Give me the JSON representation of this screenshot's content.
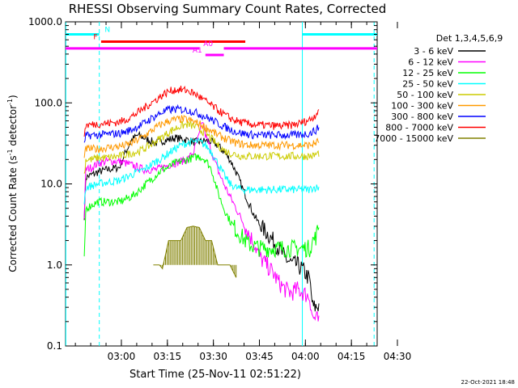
{
  "chart_data": {
    "type": "line",
    "title": "RHESSI Observing Summary Count Rates, Corrected",
    "xlabel": "Start Time (25-Nov-11 02:51:22)",
    "ylabel": "Corrected Count Rate (s⁻¹ detector⁻¹)",
    "ylabel_main": "Corrected Count Rate (s",
    "ylabel_sup1": "-1",
    "ylabel_mid": " detector",
    "ylabel_sup2": "-1",
    "ylabel_end": ")",
    "y_scale": "log",
    "xlim_min": [
      -9.6,
      92
    ],
    "ylim": [
      0.1,
      1000
    ],
    "x_ticks": [
      {
        "label": "03:00",
        "min": 8.6
      },
      {
        "label": "03:15",
        "min": 23.6
      },
      {
        "label": "03:30",
        "min": 38.6
      },
      {
        "label": "03:45",
        "min": 53.6
      },
      {
        "label": "04:00",
        "min": 68.6
      },
      {
        "label": "04:15",
        "min": 83.6
      },
      {
        "label": "04:30",
        "min": 98.6
      }
    ],
    "y_ticks": [
      {
        "label": "1000.0",
        "value": 1000
      },
      {
        "label": "100.0",
        "value": 100
      },
      {
        "label": "10.0",
        "value": 10
      },
      {
        "label": "1.0",
        "value": 1
      },
      {
        "label": "0.1",
        "value": 0.1
      }
    ],
    "legend_title": "Det 1,3,4,5,6,9",
    "legend_position": "right",
    "date_stamp": "22-Oct-2021 18:48",
    "series": [
      {
        "name": "3 - 6 keV",
        "color": "#000000",
        "t": [
          -3.5,
          -3,
          -1,
          1,
          4,
          8,
          10,
          12,
          14,
          16,
          18,
          20,
          22,
          24,
          26,
          28,
          30,
          32,
          34,
          36,
          38,
          40,
          42,
          44,
          46,
          48,
          50,
          52,
          54,
          56,
          58,
          60,
          62,
          64,
          66,
          68,
          70,
          71,
          72,
          73
        ],
        "v": [
          4,
          12,
          13,
          14,
          15,
          16,
          25,
          35,
          40,
          37,
          34,
          32,
          34,
          35,
          37,
          36,
          35,
          33,
          33,
          34,
          33,
          30,
          25,
          20,
          14,
          9,
          6,
          4,
          3,
          2.5,
          2,
          1.6,
          1.2,
          1.05,
          1,
          0.85,
          0.65,
          0.3,
          0.3,
          0.32
        ]
      },
      {
        "name": "6 - 12 keV",
        "color": "#ff00ff",
        "t": [
          -3.5,
          -3,
          -1,
          1,
          4,
          8,
          10,
          12,
          14,
          16,
          18,
          20,
          22,
          24,
          26,
          28,
          30,
          32,
          34,
          35,
          36,
          38,
          40,
          42,
          44,
          46,
          48,
          50,
          52,
          54,
          56,
          58,
          60,
          62,
          64,
          66,
          68,
          70,
          71,
          72,
          73
        ],
        "v": [
          4,
          15,
          16,
          18,
          19,
          19,
          18,
          17,
          16,
          15,
          15,
          15,
          16,
          17,
          18,
          19,
          20,
          24,
          40,
          60,
          40,
          25,
          15,
          10,
          7,
          5,
          3.5,
          2.5,
          1.8,
          1.2,
          1,
          0.8,
          0.6,
          0.5,
          0.45,
          0.5,
          0.45,
          0.4,
          0.22,
          0.22,
          0.2
        ]
      },
      {
        "name": "12 - 25 keV",
        "color": "#00ff00",
        "t": [
          -3.5,
          -3,
          -1,
          1,
          4,
          8,
          10,
          12,
          14,
          16,
          18,
          20,
          22,
          24,
          26,
          28,
          30,
          32,
          34,
          36,
          38,
          40,
          42,
          44,
          46,
          48,
          50,
          52,
          54,
          56,
          58,
          60,
          62,
          64,
          66,
          68,
          70,
          71,
          72,
          73
        ],
        "v": [
          1,
          5,
          5.5,
          6,
          6,
          6,
          6.5,
          7,
          8,
          9.5,
          11,
          13,
          15,
          16,
          18,
          19,
          20,
          21,
          22,
          20,
          15,
          8,
          5,
          3.5,
          2.7,
          2.2,
          1.8,
          1.7,
          1.6,
          1.6,
          1.6,
          1.6,
          1.6,
          1.6,
          1.6,
          1.6,
          1.6,
          2,
          2.2,
          3
        ]
      },
      {
        "name": "25 - 50 keV",
        "color": "#00ffff",
        "t": [
          -3.5,
          -3,
          -1,
          1,
          4,
          8,
          10,
          12,
          14,
          16,
          18,
          20,
          22,
          24,
          26,
          28,
          30,
          32,
          34,
          36,
          38,
          40,
          42,
          44,
          46,
          48,
          50,
          52,
          54,
          56,
          58,
          60,
          62,
          64,
          66,
          68,
          70,
          71,
          72,
          73
        ],
        "v": [
          6,
          9,
          9.5,
          10,
          10.5,
          11,
          12,
          13,
          14,
          15,
          17,
          19,
          21,
          24,
          27,
          30,
          32,
          33,
          33,
          30,
          25,
          18,
          13,
          10,
          9,
          8.5,
          8.5,
          8.5,
          8.5,
          8.5,
          8.5,
          8.5,
          8.5,
          8.5,
          8.5,
          8.5,
          8.5,
          9,
          9,
          9
        ]
      },
      {
        "name": "50 - 100 keV",
        "color": "#cccc00",
        "t": [
          -3.5,
          -3,
          -1,
          1,
          4,
          8,
          10,
          12,
          14,
          16,
          18,
          20,
          22,
          24,
          26,
          28,
          30,
          32,
          34,
          36,
          38,
          40,
          42,
          44,
          46,
          48,
          50,
          52,
          54,
          56,
          58,
          60,
          62,
          64,
          66,
          68,
          70,
          71,
          72,
          73
        ],
        "v": [
          13,
          20,
          20,
          21,
          21,
          22,
          23,
          24,
          25,
          27,
          30,
          34,
          38,
          43,
          48,
          52,
          54,
          52,
          48,
          42,
          36,
          30,
          26,
          24,
          23,
          22,
          22,
          22,
          22,
          22,
          22,
          22,
          22,
          22,
          22,
          22,
          22,
          22,
          23,
          24
        ]
      },
      {
        "name": "100 - 300 keV",
        "color": "#ff9900",
        "t": [
          -3.5,
          -3,
          -1,
          1,
          4,
          8,
          10,
          12,
          14,
          16,
          18,
          20,
          22,
          24,
          26,
          28,
          30,
          32,
          34,
          36,
          38,
          40,
          42,
          44,
          46,
          48,
          50,
          52,
          54,
          56,
          58,
          60,
          62,
          64,
          66,
          68,
          70,
          71,
          72,
          73
        ],
        "v": [
          20,
          27,
          27,
          27,
          28,
          29,
          30,
          32,
          35,
          39,
          44,
          50,
          55,
          60,
          62,
          63,
          62,
          59,
          55,
          50,
          45,
          40,
          37,
          34,
          32,
          31,
          30,
          30,
          30,
          30,
          30,
          30,
          30,
          30,
          30,
          30,
          30,
          31,
          32,
          34
        ]
      },
      {
        "name": "300 - 800 keV",
        "color": "#0000ff",
        "t": [
          -3.5,
          -3,
          -1,
          1,
          4,
          8,
          10,
          12,
          14,
          16,
          18,
          20,
          22,
          24,
          26,
          28,
          30,
          32,
          34,
          36,
          38,
          40,
          42,
          44,
          46,
          48,
          50,
          52,
          54,
          56,
          58,
          60,
          62,
          64,
          66,
          68,
          70,
          71,
          72,
          73
        ],
        "v": [
          30,
          39,
          40,
          40,
          41,
          42,
          44,
          47,
          51,
          56,
          63,
          70,
          77,
          82,
          83,
          83,
          81,
          78,
          73,
          67,
          62,
          56,
          51,
          47,
          44,
          42,
          41,
          40,
          40,
          40,
          40,
          40,
          40,
          40,
          40,
          41,
          42,
          44,
          46,
          50
        ]
      },
      {
        "name": "800 - 7000 keV",
        "color": "#ff0000",
        "t": [
          -3.5,
          -3,
          -1,
          1,
          4,
          8,
          10,
          12,
          14,
          16,
          18,
          20,
          22,
          24,
          26,
          28,
          30,
          32,
          34,
          36,
          38,
          40,
          42,
          44,
          46,
          48,
          50,
          52,
          54,
          56,
          58,
          60,
          62,
          64,
          66,
          68,
          70,
          71,
          72,
          73
        ],
        "v": [
          40,
          53,
          54,
          55,
          56,
          58,
          62,
          68,
          76,
          86,
          98,
          110,
          125,
          138,
          145,
          145,
          142,
          132,
          120,
          105,
          93,
          82,
          72,
          65,
          60,
          57,
          55,
          54,
          53,
          53,
          52,
          52,
          52,
          53,
          55,
          58,
          62,
          66,
          72,
          85
        ]
      },
      {
        "name": "7000 - 15000 keV",
        "color": "#808000",
        "t": [
          19,
          21,
          22,
          24,
          26,
          28,
          30,
          32,
          34,
          36,
          38,
          40,
          42,
          44,
          46
        ],
        "v": [
          1,
          1,
          0.9,
          2,
          2,
          2,
          2.9,
          3,
          2.9,
          2,
          2,
          1,
          1,
          1,
          0.7
        ]
      }
    ],
    "flag_bars": [
      {
        "label": "N",
        "color": "#00ffff",
        "y": 700,
        "segments": [
          [
            -9.6,
            1.4
          ],
          [
            67.6,
            92
          ]
        ]
      },
      {
        "label": "F",
        "color": "#ff0000",
        "y": 570,
        "segments": [
          [
            2,
            49
          ]
        ]
      },
      {
        "label": "A0",
        "color": "#ff00ff",
        "y": 470,
        "segments": [
          [
            -9.6,
            34
          ],
          [
            42,
            92
          ]
        ]
      },
      {
        "label": "A1",
        "color": "#ff00ff",
        "y": 390,
        "segments": [
          [
            36,
            42
          ]
        ]
      }
    ],
    "markers": [
      {
        "color": "#00ffff",
        "style": "solid",
        "t": -9.5
      },
      {
        "color": "#00ffff",
        "style": "dashed",
        "t": 1.4
      },
      {
        "color": "#00ffff",
        "style": "solid",
        "t": 67.6
      },
      {
        "color": "#00ffff",
        "style": "dashed",
        "t": 91
      }
    ]
  }
}
